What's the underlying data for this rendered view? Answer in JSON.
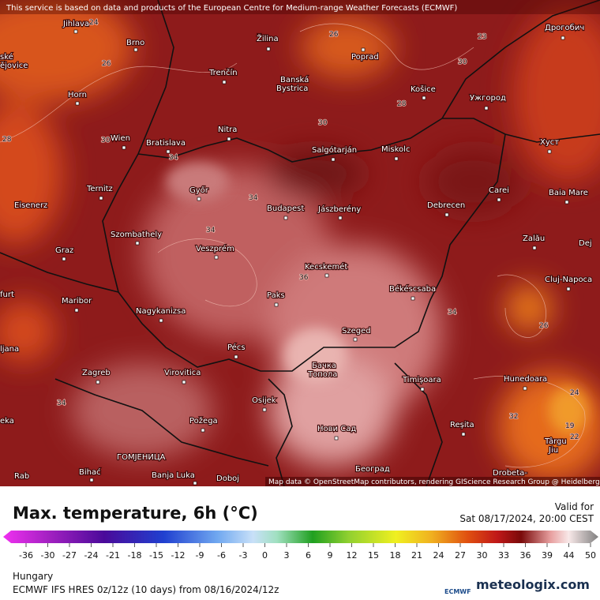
{
  "header": {
    "notice": "This service is based on data and products of the European Centre for Medium-range Weather Forecasts (ECMWF)"
  },
  "map": {
    "attribution": "Map data © OpenStreetMap contributors, rendering GIScience Research Group @ Heidelberg University",
    "cities": [
      "Jihlava",
      "Brno",
      "Žilina",
      "Poprad",
      "Дрогобич",
      "ské",
      "ějovice",
      "Trenčín",
      "Banská",
      "Bystrica",
      "Košice",
      "Ужгород",
      "Horn",
      "Nitra",
      "Wien",
      "Bratislava",
      "Salgótarján",
      "Miskolc",
      "Хуст",
      "Ternitz",
      "Győr",
      "Budapest",
      "Jászberény",
      "Debrecen",
      "Carei",
      "Baia Mare",
      "Eisenerz",
      "Szombathely",
      "Veszprém",
      "Zalău",
      "Dej",
      "Graz",
      "Kecskemét",
      "Cluj-Napoca",
      "Paks",
      "Békéscsaba",
      "furt",
      "Maribor",
      "Nagykanizsa",
      "Szeged",
      "ljana",
      "Pécs",
      "Бачка",
      "Топола",
      "Zagreb",
      "Virovitica",
      "Timișoara",
      "Hunedoara",
      "Osijek",
      "Požega",
      "eka",
      "Reșita",
      "Нови Сад",
      "Târgu",
      "Jiu",
      "ГОМЈЕНИЦА",
      "Bihać",
      "Banja Luka",
      "Doboj",
      "Београд",
      "Rab",
      "Drobeta-"
    ],
    "contour_labels": [
      "24",
      "26",
      "23",
      "26",
      "30",
      "28",
      "30",
      "28",
      "30",
      "34",
      "34",
      "34",
      "36",
      "34",
      "26",
      "34",
      "24",
      "19",
      "22",
      "32"
    ]
  },
  "legend": {
    "title": "Max. temperature, 6h (°C)",
    "valid_label": "Valid for",
    "valid_time": "Sat 08/17/2024, 20:00 CEST",
    "ticks": [
      -36,
      -30,
      -27,
      -24,
      -21,
      -18,
      -15,
      -12,
      -9,
      -6,
      -3,
      0,
      3,
      6,
      9,
      12,
      15,
      18,
      21,
      24,
      27,
      30,
      33,
      36,
      39,
      44,
      50
    ]
  },
  "footer": {
    "region": "Hungary",
    "model": "ECMWF IFS HRES 0z/12z (10 days) from 08/16/2024/12z",
    "ecmwf_logo": "ECMWF",
    "brand": "meteologix.com"
  }
}
